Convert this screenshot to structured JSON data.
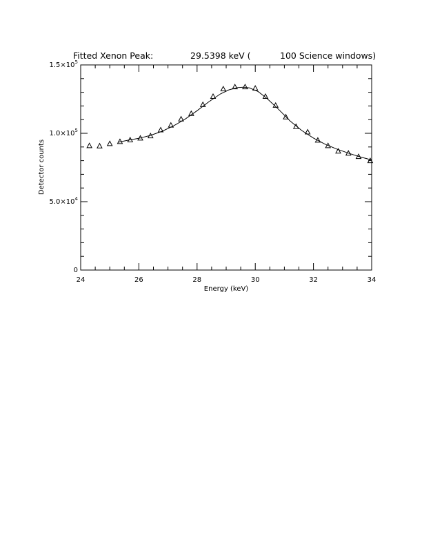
{
  "title": {
    "left": "Fitted Xenon Peak:",
    "middle": "29.5398 keV (",
    "right": "100 Science windows)"
  },
  "chart_data": {
    "type": "scatter",
    "xlabel": "Energy (keV)",
    "ylabel": "Detector counts",
    "xlim": [
      24,
      34
    ],
    "ylim": [
      0,
      150000
    ],
    "x_ticks": [
      24,
      26,
      28,
      30,
      32,
      34
    ],
    "x_tick_labels": [
      "24",
      "26",
      "28",
      "30",
      "32",
      "34"
    ],
    "y_ticks": [
      0,
      50000,
      100000,
      150000
    ],
    "y_tick_labels": [
      {
        "mantissa": "0",
        "exp": ""
      },
      {
        "mantissa": "5.0×10",
        "exp": "4"
      },
      {
        "mantissa": "1.0×10",
        "exp": "5"
      },
      {
        "mantissa": "1.5×10",
        "exp": "5"
      }
    ],
    "grid": false,
    "series": [
      {
        "marker": "triangle",
        "x": [
          24.3,
          24.65,
          25.0,
          25.35,
          25.7,
          26.05,
          26.4,
          26.75,
          27.1,
          27.45,
          27.8,
          28.2,
          28.55,
          28.9,
          29.3,
          29.65,
          30.0,
          30.35,
          30.7,
          31.05,
          31.4,
          31.8,
          32.15,
          32.5,
          32.85,
          33.2,
          33.55,
          33.95
        ],
        "y": [
          91000,
          90800,
          92500,
          94000,
          95200,
          96500,
          98200,
          102500,
          106000,
          110500,
          114500,
          121000,
          127000,
          132500,
          134000,
          134000,
          133000,
          127000,
          120500,
          112000,
          105000,
          101000,
          95000,
          91000,
          87000,
          85500,
          83000,
          80000
        ]
      },
      {
        "line": true,
        "x": [
          25.3,
          25.6,
          26.0,
          26.4,
          26.8,
          27.2,
          27.6,
          28.0,
          28.4,
          28.8,
          29.1,
          29.4,
          29.6,
          29.8,
          30.1,
          30.4,
          30.8,
          31.2,
          31.6,
          32.0,
          32.4,
          32.8,
          33.2,
          33.6,
          34.0
        ],
        "y": [
          93500,
          94800,
          96300,
          98500,
          101500,
          105500,
          110500,
          116500,
          123000,
          128800,
          131800,
          133500,
          133700,
          133200,
          130500,
          125500,
          117500,
          109000,
          102000,
          96500,
          92000,
          88500,
          85500,
          82800,
          80500
        ]
      }
    ]
  }
}
